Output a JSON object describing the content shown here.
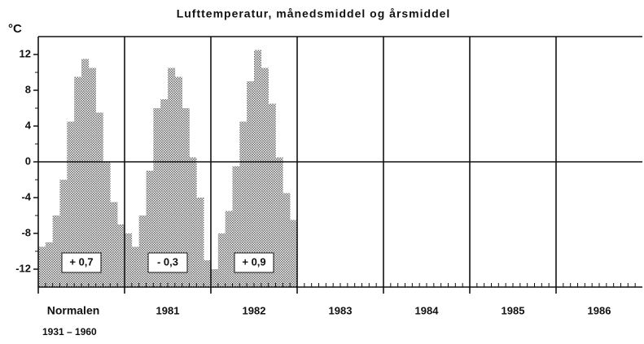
{
  "chart_data": {
    "type": "bar",
    "title": "Lufttemperatur, månedsmiddel og årsmiddel",
    "y_label": "°C",
    "categories": [
      "Normalen",
      "1981",
      "1982",
      "1983",
      "1984",
      "1985",
      "1986"
    ],
    "category_sublabel": "1931 – 1960",
    "values": [
      [
        -9.5,
        -9,
        -6,
        -2,
        4.5,
        9.5,
        11.5,
        10.5,
        5.5,
        0,
        -4.5,
        -7
      ],
      [
        -8,
        -9.5,
        -6,
        -1,
        6,
        7,
        10.5,
        9.5,
        6,
        0.5,
        -4,
        -11
      ],
      [
        -12,
        -8,
        -5.5,
        -0.5,
        4.5,
        9,
        12.5,
        10.5,
        6.5,
        0.5,
        -3.5,
        -6.5
      ],
      [],
      [],
      [],
      []
    ],
    "annual_means": [
      0.7,
      -0.3,
      0.9,
      null,
      null,
      null,
      null
    ],
    "annual_mean_labels": [
      "+ 0,7",
      "- 0,3",
      "+ 0,9",
      null,
      null,
      null,
      null
    ],
    "color": "#6e6e6e",
    "ylim": [
      -14,
      14
    ],
    "yticks": [
      -12,
      -8,
      -4,
      0,
      4,
      8,
      12
    ],
    "yminorticks": [
      -10,
      -6,
      -2,
      2,
      6,
      10
    ]
  }
}
